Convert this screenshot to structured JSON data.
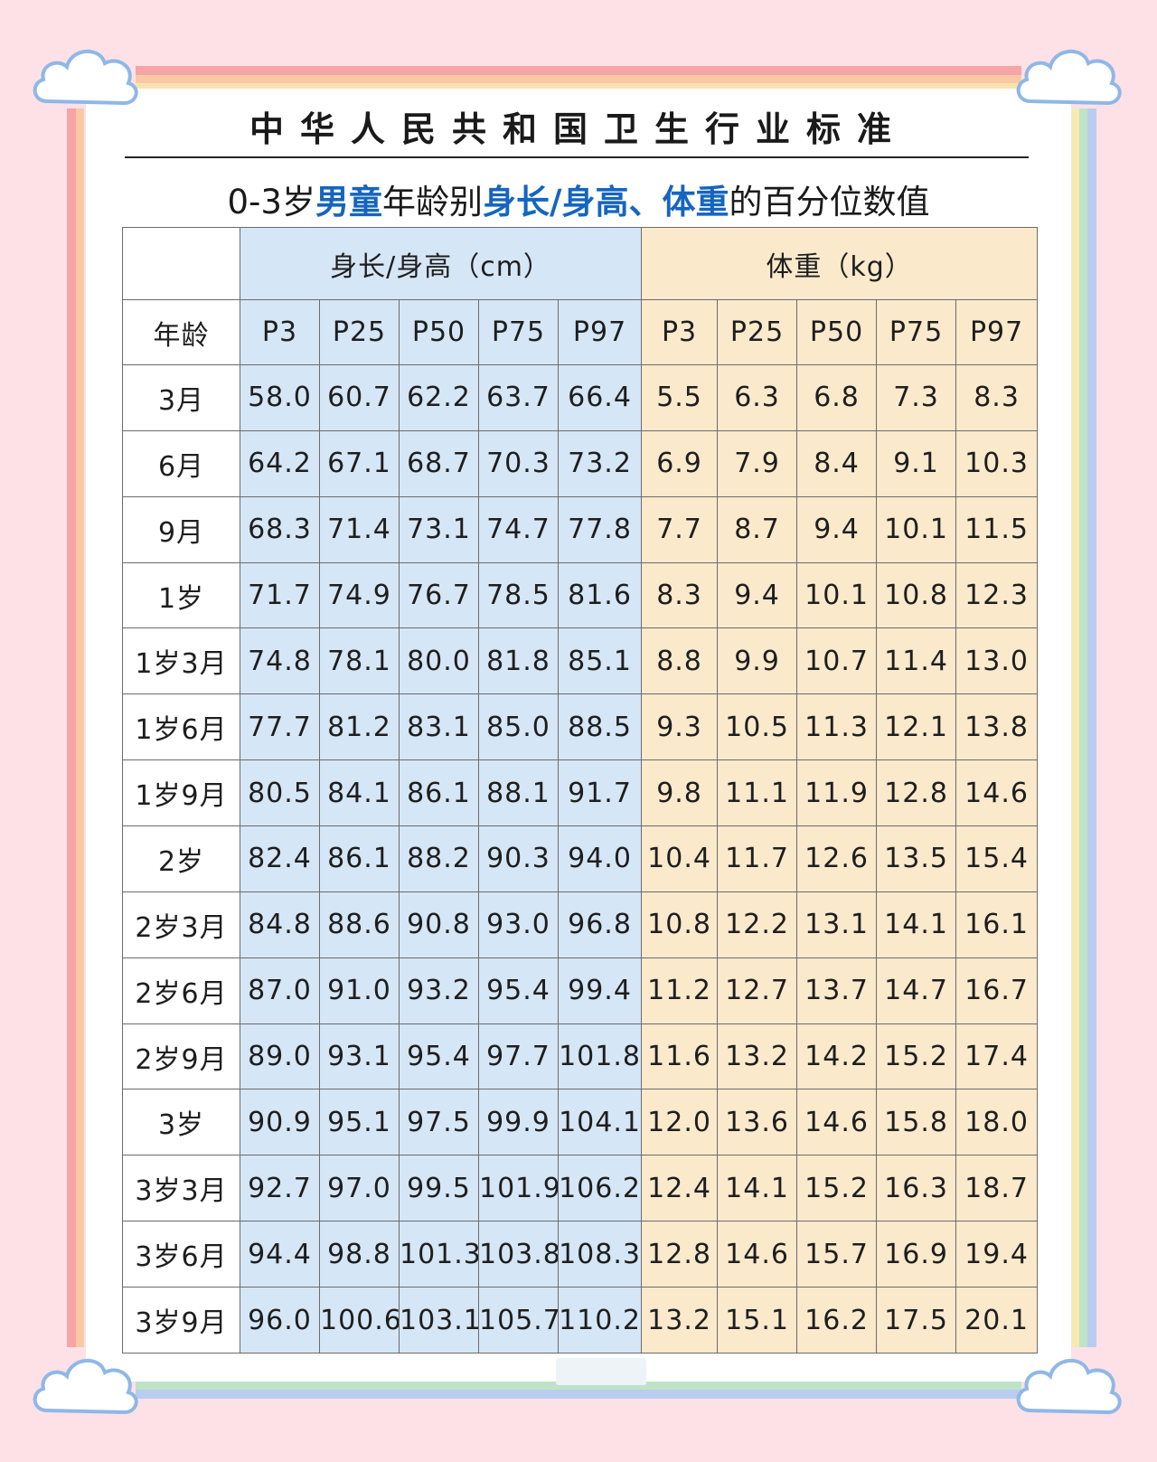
{
  "header": {
    "main_title": "中华人民共和国卫生行业标准",
    "subtitle_prefix": "0-3岁",
    "subtitle_em1": "男童",
    "subtitle_mid": "年龄别",
    "subtitle_em2": "身长/身高、体重",
    "subtitle_suffix": "的百分位数值"
  },
  "table": {
    "group_height": "身长/身高（cm）",
    "group_weight": "体重（kg）",
    "age_header": "年龄",
    "percentiles": [
      "P3",
      "P25",
      "P50",
      "P75",
      "P97"
    ],
    "rows": [
      {
        "age": "3月",
        "height": [
          "58.0",
          "60.7",
          "62.2",
          "63.7",
          "66.4"
        ],
        "weight": [
          "5.5",
          "6.3",
          "6.8",
          "7.3",
          "8.3"
        ]
      },
      {
        "age": "6月",
        "height": [
          "64.2",
          "67.1",
          "68.7",
          "70.3",
          "73.2"
        ],
        "weight": [
          "6.9",
          "7.9",
          "8.4",
          "9.1",
          "10.3"
        ]
      },
      {
        "age": "9月",
        "height": [
          "68.3",
          "71.4",
          "73.1",
          "74.7",
          "77.8"
        ],
        "weight": [
          "7.7",
          "8.7",
          "9.4",
          "10.1",
          "11.5"
        ]
      },
      {
        "age": "1岁",
        "height": [
          "71.7",
          "74.9",
          "76.7",
          "78.5",
          "81.6"
        ],
        "weight": [
          "8.3",
          "9.4",
          "10.1",
          "10.8",
          "12.3"
        ]
      },
      {
        "age": "1岁3月",
        "height": [
          "74.8",
          "78.1",
          "80.0",
          "81.8",
          "85.1"
        ],
        "weight": [
          "8.8",
          "9.9",
          "10.7",
          "11.4",
          "13.0"
        ]
      },
      {
        "age": "1岁6月",
        "height": [
          "77.7",
          "81.2",
          "83.1",
          "85.0",
          "88.5"
        ],
        "weight": [
          "9.3",
          "10.5",
          "11.3",
          "12.1",
          "13.8"
        ]
      },
      {
        "age": "1岁9月",
        "height": [
          "80.5",
          "84.1",
          "86.1",
          "88.1",
          "91.7"
        ],
        "weight": [
          "9.8",
          "11.1",
          "11.9",
          "12.8",
          "14.6"
        ]
      },
      {
        "age": "2岁",
        "height": [
          "82.4",
          "86.1",
          "88.2",
          "90.3",
          "94.0"
        ],
        "weight": [
          "10.4",
          "11.7",
          "12.6",
          "13.5",
          "15.4"
        ]
      },
      {
        "age": "2岁3月",
        "height": [
          "84.8",
          "88.6",
          "90.8",
          "93.0",
          "96.8"
        ],
        "weight": [
          "10.8",
          "12.2",
          "13.1",
          "14.1",
          "16.1"
        ]
      },
      {
        "age": "2岁6月",
        "height": [
          "87.0",
          "91.0",
          "93.2",
          "95.4",
          "99.4"
        ],
        "weight": [
          "11.2",
          "12.7",
          "13.7",
          "14.7",
          "16.7"
        ]
      },
      {
        "age": "2岁9月",
        "height": [
          "89.0",
          "93.1",
          "95.4",
          "97.7",
          "101.8"
        ],
        "weight": [
          "11.6",
          "13.2",
          "14.2",
          "15.2",
          "17.4"
        ]
      },
      {
        "age": "3岁",
        "height": [
          "90.9",
          "95.1",
          "97.5",
          "99.9",
          "104.1"
        ],
        "weight": [
          "12.0",
          "13.6",
          "14.6",
          "15.8",
          "18.0"
        ]
      },
      {
        "age": "3岁3月",
        "height": [
          "92.7",
          "97.0",
          "99.5",
          "101.9",
          "106.2"
        ],
        "weight": [
          "12.4",
          "14.1",
          "15.2",
          "16.3",
          "18.7"
        ]
      },
      {
        "age": "3岁6月",
        "height": [
          "94.4",
          "98.8",
          "101.3",
          "103.8",
          "108.3"
        ],
        "weight": [
          "12.8",
          "14.6",
          "15.7",
          "16.9",
          "19.4"
        ]
      },
      {
        "age": "3岁9月",
        "height": [
          "96.0",
          "100.6",
          "103.1",
          "105.7",
          "110.2"
        ],
        "weight": [
          "13.2",
          "15.1",
          "16.2",
          "17.5",
          "20.1"
        ]
      }
    ]
  },
  "colors": {
    "background": "#fde1e6",
    "height_column": "#d5e6f6",
    "weight_column": "#fbe9cc",
    "accent_text": "#1565c0"
  }
}
